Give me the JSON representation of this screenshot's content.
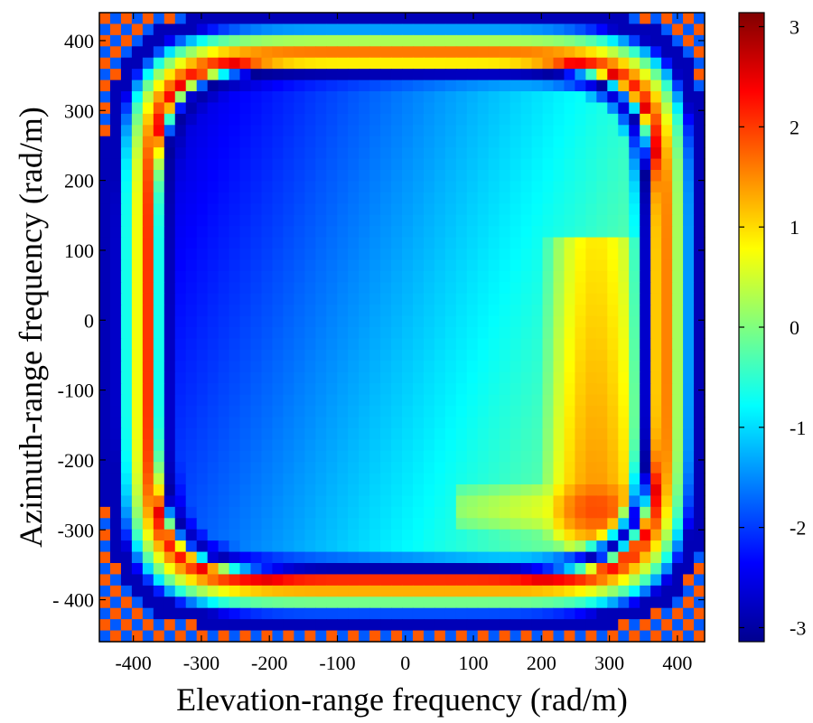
{
  "chart_data": {
    "type": "heatmap",
    "title": "",
    "xlabel": "Elevation-range frequency (rad/m)",
    "ylabel": "Azimuth-range frequency (rad/m)",
    "xlim": [
      -450,
      440
    ],
    "ylim": [
      -460,
      440
    ],
    "xticks": [
      -400,
      -300,
      -200,
      -100,
      0,
      100,
      200,
      300,
      400
    ],
    "xtick_labels": [
      "-400",
      "-300",
      "-200",
      "-100",
      "0",
      "100",
      "200",
      "300",
      "400"
    ],
    "yticks": [
      400,
      300,
      200,
      100,
      0,
      -100,
      -200,
      -300,
      -400
    ],
    "ytick_labels": [
      "400",
      "300",
      "200",
      "100",
      "0",
      "-100",
      "-200",
      "-300",
      "- 400"
    ],
    "grid": false,
    "colormap": "jet",
    "colorbar": {
      "range": [
        -3.14,
        3.14
      ],
      "ticks": [
        3,
        2,
        1,
        0,
        -1,
        -2,
        -3
      ],
      "tick_labels": [
        "3",
        "2",
        "1",
        "0",
        "-1",
        "-2",
        "-3"
      ],
      "placement": "right"
    },
    "grid_cells": [
      56,
      56
    ],
    "field": {
      "description_values": "phase in radians over the frequency plane",
      "interior_base": -1.2,
      "interior_slope_x": 0.0032,
      "interior_slope_y": 0.0012,
      "peak": {
        "x": 280,
        "y": -270,
        "value": 1.9
      },
      "ridge": {
        "x": 280,
        "y_from": -300,
        "y_to": 120,
        "value": 0.9
      },
      "border_ring_radius": 395,
      "border_ring_values": [
        -3,
        2.5,
        1,
        -0.5,
        -2.8
      ]
    }
  }
}
